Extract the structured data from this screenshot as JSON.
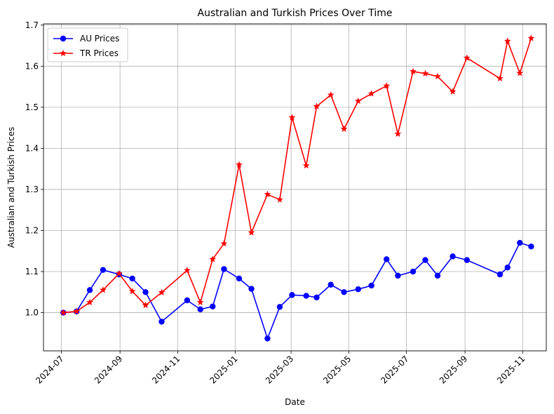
{
  "chart_data": {
    "type": "line",
    "title": "Australian and Turkish Prices Over Time",
    "xlabel": "Date",
    "ylabel": "Australian and Turkish Prices",
    "xlim": [
      "2024-06-12",
      "2025-11-26"
    ],
    "ylim": [
      0.907,
      1.703
    ],
    "x_ticks": [
      "2024-07",
      "2024-09",
      "2024-11",
      "2025-01",
      "2025-03",
      "2025-05",
      "2025-07",
      "2025-09",
      "2025-11"
    ],
    "y_ticks": [
      1.0,
      1.1,
      1.2,
      1.3,
      1.4,
      1.5,
      1.6,
      1.7
    ],
    "grid": true,
    "legend_position": "top-left",
    "series": [
      {
        "name": "AU Prices",
        "color": "#0000ff",
        "marker": "circle",
        "points": [
          [
            "2024-07-03",
            1.0
          ],
          [
            "2024-07-17",
            1.003
          ],
          [
            "2024-07-31",
            1.055
          ],
          [
            "2024-08-14",
            1.104
          ],
          [
            "2024-08-31",
            1.093
          ],
          [
            "2024-09-14",
            1.083
          ],
          [
            "2024-09-28",
            1.05
          ],
          [
            "2024-10-15",
            0.978
          ],
          [
            "2024-11-11",
            1.03
          ],
          [
            "2024-11-25",
            1.008
          ],
          [
            "2024-12-08",
            1.015
          ],
          [
            "2024-12-20",
            1.106
          ],
          [
            "2025-01-05",
            1.083
          ],
          [
            "2025-01-18",
            1.058
          ],
          [
            "2025-02-04",
            0.937
          ],
          [
            "2025-02-17",
            1.014
          ],
          [
            "2025-03-02",
            1.043
          ],
          [
            "2025-03-17",
            1.041
          ],
          [
            "2025-03-28",
            1.037
          ],
          [
            "2025-04-12",
            1.068
          ],
          [
            "2025-04-26",
            1.05
          ],
          [
            "2025-05-11",
            1.057
          ],
          [
            "2025-05-25",
            1.066
          ],
          [
            "2025-06-10",
            1.13
          ],
          [
            "2025-06-22",
            1.09
          ],
          [
            "2025-07-08",
            1.1
          ],
          [
            "2025-07-21",
            1.128
          ],
          [
            "2025-08-03",
            1.09
          ],
          [
            "2025-08-19",
            1.137
          ],
          [
            "2025-09-03",
            1.128
          ],
          [
            "2025-10-08",
            1.093
          ],
          [
            "2025-10-16",
            1.11
          ],
          [
            "2025-10-29",
            1.17
          ],
          [
            "2025-11-10",
            1.161
          ]
        ]
      },
      {
        "name": "TR Prices",
        "color": "#ff0000",
        "marker": "star",
        "points": [
          [
            "2024-07-03",
            1.0
          ],
          [
            "2024-07-17",
            1.003
          ],
          [
            "2024-07-31",
            1.025
          ],
          [
            "2024-08-14",
            1.055
          ],
          [
            "2024-08-31",
            1.095
          ],
          [
            "2024-09-14",
            1.052
          ],
          [
            "2024-09-28",
            1.018
          ],
          [
            "2024-10-15",
            1.049
          ],
          [
            "2024-11-11",
            1.103
          ],
          [
            "2024-11-25",
            1.025
          ],
          [
            "2024-12-08",
            1.13
          ],
          [
            "2024-12-20",
            1.168
          ],
          [
            "2025-01-05",
            1.36
          ],
          [
            "2025-01-18",
            1.195
          ],
          [
            "2025-02-04",
            1.288
          ],
          [
            "2025-02-17",
            1.275
          ],
          [
            "2025-03-02",
            1.475
          ],
          [
            "2025-03-17",
            1.358
          ],
          [
            "2025-03-28",
            1.502
          ],
          [
            "2025-04-12",
            1.53
          ],
          [
            "2025-04-26",
            1.447
          ],
          [
            "2025-05-11",
            1.515
          ],
          [
            "2025-05-25",
            1.533
          ],
          [
            "2025-06-10",
            1.552
          ],
          [
            "2025-06-22",
            1.435
          ],
          [
            "2025-07-08",
            1.587
          ],
          [
            "2025-07-21",
            1.582
          ],
          [
            "2025-08-03",
            1.575
          ],
          [
            "2025-08-19",
            1.538
          ],
          [
            "2025-09-03",
            1.62
          ],
          [
            "2025-10-08",
            1.57
          ],
          [
            "2025-10-16",
            1.661
          ],
          [
            "2025-10-29",
            1.583
          ],
          [
            "2025-11-10",
            1.668
          ]
        ]
      }
    ]
  }
}
